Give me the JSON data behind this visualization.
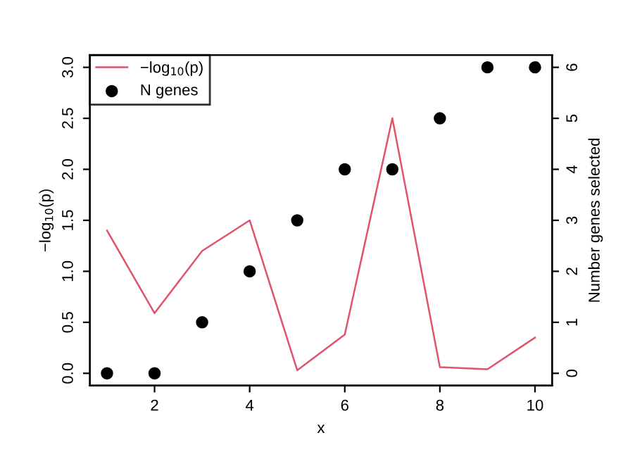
{
  "chart_data": {
    "type": "line",
    "xlabel": "x",
    "ylabel": "−log$_{10}$(p)",
    "y2label": "Number genes selected",
    "x": [
      1,
      2,
      3,
      4,
      5,
      6,
      7,
      8,
      9,
      10
    ],
    "series": [
      {
        "name": "−log$_{10}$(p)",
        "color": "#df536b",
        "values": [
          1.4,
          0.59,
          1.2,
          1.5,
          0.03,
          0.38,
          2.5,
          0.06,
          0.04,
          0.35
        ]
      },
      {
        "name": "N genes",
        "type": "scatter",
        "axis": "y2",
        "color": "#000000",
        "marker": "circle",
        "values": [
          0,
          0,
          1,
          2,
          3,
          4,
          4,
          5,
          6,
          6
        ]
      }
    ],
    "xlim": [
      0.64,
      10.36
    ],
    "xticks": [
      2,
      4,
      6,
      8,
      10
    ],
    "ylim": [
      -0.12,
      3.12
    ],
    "yticks": [
      {
        "value": 0,
        "label": "0.0"
      },
      {
        "value": 0.5,
        "label": "0.5"
      },
      {
        "value": 1,
        "label": "1.0"
      },
      {
        "value": 1.5,
        "label": "1.5"
      },
      {
        "value": 2,
        "label": "2.0"
      },
      {
        "value": 2.5,
        "label": "2.5"
      },
      {
        "value": 3,
        "label": "3.0"
      }
    ],
    "y2lim": [
      -0.24,
      6.24
    ],
    "y2ticks": [
      0,
      1,
      2,
      3,
      4,
      5,
      6
    ],
    "legend": "top left",
    "grid": false
  }
}
